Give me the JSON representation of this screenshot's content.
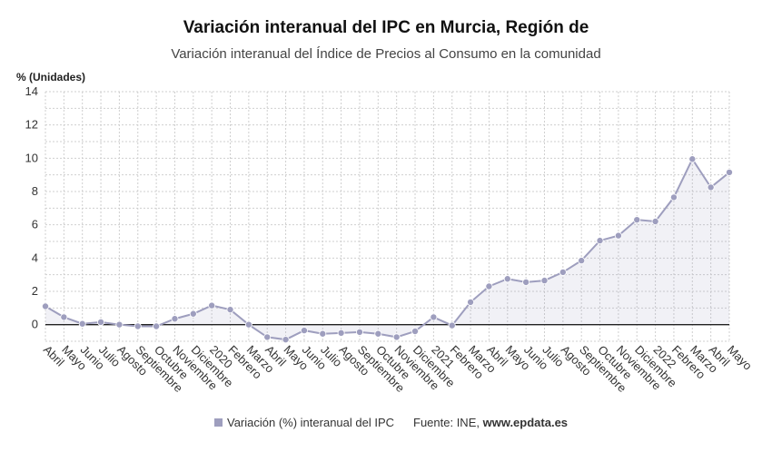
{
  "chart_data": {
    "type": "area",
    "title": "Variación interanual del IPC en Murcia, Región de",
    "subtitle": "Variación interanual del Índice de Precios al Consumo en la comunidad",
    "ylabel": "% (Unidades)",
    "ylim": [
      -1,
      14
    ],
    "yticks": [
      0,
      2,
      4,
      6,
      8,
      10,
      12,
      14
    ],
    "grid": true,
    "categories": [
      "Abril",
      "Mayo",
      "Junio",
      "Julio",
      "Agosto",
      "Septiembre",
      "Octubre",
      "Noviembre",
      "Diciembre",
      "2020",
      "Febrero",
      "Marzo",
      "Abril",
      "Mayo",
      "Junio",
      "Julio",
      "Agosto",
      "Septiembre",
      "Octubre",
      "Noviembre",
      "Diciembre",
      "2021",
      "Febrero",
      "Marzo",
      "Abril",
      "Mayo",
      "Junio",
      "Julio",
      "Agosto",
      "Septiembre",
      "Octubre",
      "Noviembre",
      "Diciembre",
      "2022",
      "Febrero",
      "Marzo",
      "Abril",
      "Mayo"
    ],
    "series": [
      {
        "name": "Variación (%) interanual del IPC",
        "color": "#9e9ebe",
        "values": [
          1.1,
          0.45,
          0.05,
          0.15,
          0.0,
          -0.1,
          -0.1,
          0.35,
          0.65,
          1.15,
          0.9,
          0.0,
          -0.75,
          -0.9,
          -0.35,
          -0.55,
          -0.5,
          -0.45,
          -0.55,
          -0.75,
          -0.4,
          0.45,
          -0.05,
          1.35,
          2.3,
          2.75,
          2.55,
          2.65,
          3.15,
          3.85,
          5.05,
          5.35,
          6.3,
          6.2,
          7.65,
          9.95,
          8.25,
          9.15
        ]
      }
    ],
    "legend_position": "bottom-center"
  },
  "footer": {
    "legend_label": "Variación (%) interanual del IPC",
    "source_prefix": "Fuente: INE, ",
    "source_site": "www.epdata.es"
  }
}
